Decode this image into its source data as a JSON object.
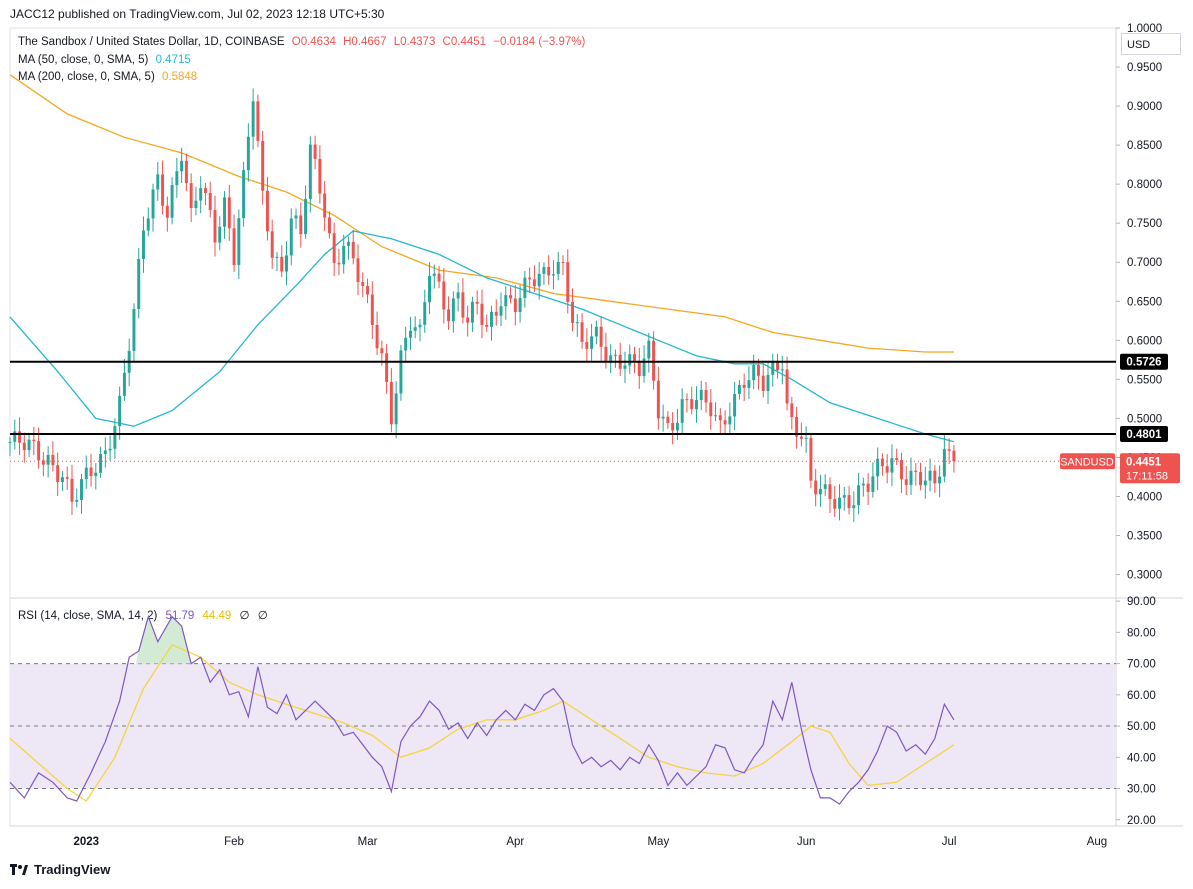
{
  "publisher_line": "JACC12 published on TradingView.com, Jul 02, 2023 12:18 UTC+5:30",
  "legend": {
    "symbol": "The Sandbox / United States Dollar, 1D, COINBASE",
    "open": "O0.4634",
    "high": "H0.4667",
    "low": "L0.4373",
    "close": "C0.4451",
    "change": "−0.0184 (−3.97%)",
    "ma50_label": "MA (50, close, 0, SMA, 5)",
    "ma50_value": "0.4715",
    "ma200_label": "MA (200, close, 0, SMA, 5)",
    "ma200_value": "0.5848"
  },
  "rsi_legend": {
    "label": "RSI (14, close, SMA, 14, 2)",
    "rsi_value": "51.79",
    "sma_value": "44.49",
    "extra1": "∅",
    "extra2": "∅"
  },
  "currency": "USD",
  "brand": "TradingView",
  "price_tag": {
    "symbol": "SANDUSD",
    "price": "0.4451",
    "countdown": "17:11:58"
  },
  "level_tags": [
    "0.5726",
    "0.4801"
  ],
  "colors": {
    "up": "#26a69a",
    "down": "#ef5350",
    "ma50": "#22b8cf",
    "ma200": "#f5a623",
    "rsi": "#7e57c2",
    "rsi_sma": "#f5d442",
    "level": "#000000",
    "rsi_band": "#ede7f6"
  },
  "chart_data": [
    {
      "type": "candlestick",
      "title": "The Sandbox / United States Dollar, 1D, COINBASE",
      "y_axis_ticks": [
        "1.0000",
        "0.9500",
        "0.9000",
        "0.8500",
        "0.8000",
        "0.7500",
        "0.7000",
        "0.6500",
        "0.6000",
        "0.5500",
        "0.5000",
        "0.4500",
        "0.4000",
        "0.3500",
        "0.3000"
      ],
      "y_range": [
        0.27,
        1.0
      ],
      "x_axis_ticks": [
        "2023",
        "Feb",
        "Mar",
        "Apr",
        "May",
        "Jun",
        "Jul",
        "Aug"
      ],
      "x_tick_days": [
        16,
        47,
        75,
        106,
        136,
        167,
        197,
        228
      ],
      "x_range_days": [
        0,
        232
      ],
      "last_day": 198,
      "horizontal_levels": [
        0.5726,
        0.4801
      ],
      "last_price": 0.4451,
      "anchors": [
        [
          0,
          0.47
        ],
        [
          4,
          0.46
        ],
        [
          8,
          0.45
        ],
        [
          11,
          0.43
        ],
        [
          13,
          0.39
        ],
        [
          16,
          0.42
        ],
        [
          20,
          0.46
        ],
        [
          23,
          0.52
        ],
        [
          26,
          0.63
        ],
        [
          28,
          0.74
        ],
        [
          31,
          0.81
        ],
        [
          33,
          0.77
        ],
        [
          36,
          0.84
        ],
        [
          38,
          0.75
        ],
        [
          40,
          0.8
        ],
        [
          43,
          0.74
        ],
        [
          45,
          0.78
        ],
        [
          47,
          0.71
        ],
        [
          49,
          0.8
        ],
        [
          51,
          0.91
        ],
        [
          53,
          0.78
        ],
        [
          55,
          0.72
        ],
        [
          57,
          0.69
        ],
        [
          59,
          0.76
        ],
        [
          61,
          0.73
        ],
        [
          63,
          0.84
        ],
        [
          66,
          0.77
        ],
        [
          68,
          0.7
        ],
        [
          70,
          0.73
        ],
        [
          72,
          0.7
        ],
        [
          74,
          0.66
        ],
        [
          76,
          0.62
        ],
        [
          78,
          0.58
        ],
        [
          80,
          0.51
        ],
        [
          82,
          0.58
        ],
        [
          84,
          0.62
        ],
        [
          86,
          0.6
        ],
        [
          88,
          0.69
        ],
        [
          90,
          0.67
        ],
        [
          92,
          0.64
        ],
        [
          94,
          0.66
        ],
        [
          96,
          0.62
        ],
        [
          98,
          0.64
        ],
        [
          100,
          0.61
        ],
        [
          103,
          0.66
        ],
        [
          106,
          0.65
        ],
        [
          109,
          0.67
        ],
        [
          112,
          0.68
        ],
        [
          114,
          0.7
        ],
        [
          116,
          0.7
        ],
        [
          118,
          0.63
        ],
        [
          120,
          0.59
        ],
        [
          123,
          0.6
        ],
        [
          126,
          0.58
        ],
        [
          129,
          0.58
        ],
        [
          132,
          0.56
        ],
        [
          134,
          0.58
        ],
        [
          136,
          0.51
        ],
        [
          138,
          0.49
        ],
        [
          141,
          0.52
        ],
        [
          144,
          0.52
        ],
        [
          147,
          0.51
        ],
        [
          149,
          0.49
        ],
        [
          151,
          0.52
        ],
        [
          154,
          0.55
        ],
        [
          156,
          0.55
        ],
        [
          158,
          0.54
        ],
        [
          160,
          0.56
        ],
        [
          162,
          0.58
        ],
        [
          163,
          0.52
        ],
        [
          164,
          0.5
        ],
        [
          166,
          0.48
        ],
        [
          167,
          0.46
        ],
        [
          168,
          0.41
        ],
        [
          171,
          0.4
        ],
        [
          174,
          0.4
        ],
        [
          177,
          0.4
        ],
        [
          180,
          0.41
        ],
        [
          182,
          0.43
        ],
        [
          185,
          0.45
        ],
        [
          188,
          0.43
        ],
        [
          191,
          0.42
        ],
        [
          194,
          0.41
        ],
        [
          196,
          0.46
        ],
        [
          198,
          0.445
        ]
      ],
      "ma50": [
        [
          0,
          0.63
        ],
        [
          10,
          0.56
        ],
        [
          18,
          0.5
        ],
        [
          26,
          0.49
        ],
        [
          34,
          0.51
        ],
        [
          44,
          0.56
        ],
        [
          52,
          0.62
        ],
        [
          60,
          0.67
        ],
        [
          66,
          0.71
        ],
        [
          72,
          0.74
        ],
        [
          80,
          0.73
        ],
        [
          90,
          0.71
        ],
        [
          100,
          0.68
        ],
        [
          110,
          0.66
        ],
        [
          120,
          0.64
        ],
        [
          128,
          0.62
        ],
        [
          136,
          0.6
        ],
        [
          144,
          0.58
        ],
        [
          152,
          0.57
        ],
        [
          158,
          0.57
        ],
        [
          164,
          0.55
        ],
        [
          172,
          0.52
        ],
        [
          182,
          0.5
        ],
        [
          192,
          0.48
        ],
        [
          198,
          0.47
        ]
      ],
      "ma200": [
        [
          0,
          0.94
        ],
        [
          12,
          0.89
        ],
        [
          24,
          0.86
        ],
        [
          36,
          0.84
        ],
        [
          48,
          0.81
        ],
        [
          58,
          0.79
        ],
        [
          68,
          0.76
        ],
        [
          78,
          0.72
        ],
        [
          90,
          0.69
        ],
        [
          102,
          0.68
        ],
        [
          114,
          0.66
        ],
        [
          126,
          0.65
        ],
        [
          138,
          0.64
        ],
        [
          150,
          0.63
        ],
        [
          160,
          0.61
        ],
        [
          170,
          0.6
        ],
        [
          180,
          0.59
        ],
        [
          192,
          0.585
        ],
        [
          198,
          0.585
        ]
      ]
    },
    {
      "type": "line",
      "title": "RSI (14, close, SMA, 14, 2)",
      "y_axis_ticks": [
        "90.00",
        "80.00",
        "70.00",
        "60.00",
        "50.00",
        "40.00",
        "30.00",
        "20.00"
      ],
      "y_range": [
        18,
        91
      ],
      "bands": {
        "upper": 70,
        "middle": 50,
        "lower": 30
      },
      "rsi": [
        [
          0,
          32
        ],
        [
          3,
          27
        ],
        [
          6,
          35
        ],
        [
          9,
          32
        ],
        [
          12,
          27
        ],
        [
          14,
          26
        ],
        [
          17,
          35
        ],
        [
          20,
          45
        ],
        [
          23,
          58
        ],
        [
          25,
          72
        ],
        [
          27,
          74
        ],
        [
          29,
          85
        ],
        [
          31,
          77
        ],
        [
          34,
          85
        ],
        [
          36,
          82
        ],
        [
          38,
          70
        ],
        [
          40,
          72
        ],
        [
          42,
          64
        ],
        [
          44,
          68
        ],
        [
          46,
          60
        ],
        [
          48,
          61
        ],
        [
          50,
          53
        ],
        [
          52,
          69
        ],
        [
          54,
          56
        ],
        [
          56,
          54
        ],
        [
          58,
          60
        ],
        [
          60,
          52
        ],
        [
          62,
          55
        ],
        [
          64,
          58
        ],
        [
          66,
          55
        ],
        [
          68,
          52
        ],
        [
          70,
          47
        ],
        [
          72,
          48
        ],
        [
          74,
          44
        ],
        [
          76,
          40
        ],
        [
          78,
          37
        ],
        [
          80,
          29
        ],
        [
          82,
          45
        ],
        [
          84,
          50
        ],
        [
          86,
          53
        ],
        [
          88,
          58
        ],
        [
          90,
          55
        ],
        [
          92,
          49
        ],
        [
          94,
          51
        ],
        [
          96,
          46
        ],
        [
          98,
          51
        ],
        [
          100,
          47
        ],
        [
          102,
          52
        ],
        [
          104,
          55
        ],
        [
          106,
          52
        ],
        [
          108,
          57
        ],
        [
          110,
          55
        ],
        [
          112,
          60
        ],
        [
          114,
          62
        ],
        [
          116,
          58
        ],
        [
          118,
          44
        ],
        [
          120,
          38
        ],
        [
          122,
          40
        ],
        [
          124,
          37
        ],
        [
          126,
          39
        ],
        [
          128,
          36
        ],
        [
          130,
          40
        ],
        [
          132,
          38
        ],
        [
          134,
          44
        ],
        [
          136,
          39
        ],
        [
          138,
          31
        ],
        [
          140,
          35
        ],
        [
          142,
          31
        ],
        [
          144,
          34
        ],
        [
          146,
          37
        ],
        [
          148,
          44
        ],
        [
          150,
          43
        ],
        [
          152,
          36
        ],
        [
          154,
          35
        ],
        [
          156,
          40
        ],
        [
          158,
          44
        ],
        [
          160,
          58
        ],
        [
          162,
          52
        ],
        [
          164,
          64
        ],
        [
          166,
          49
        ],
        [
          168,
          36
        ],
        [
          170,
          27
        ],
        [
          172,
          27
        ],
        [
          174,
          25
        ],
        [
          176,
          29
        ],
        [
          178,
          32
        ],
        [
          180,
          36
        ],
        [
          182,
          42
        ],
        [
          184,
          50
        ],
        [
          186,
          48
        ],
        [
          188,
          42
        ],
        [
          190,
          44
        ],
        [
          192,
          41
        ],
        [
          194,
          46
        ],
        [
          196,
          57
        ],
        [
          198,
          52
        ]
      ],
      "rsi_sma": [
        [
          0,
          46
        ],
        [
          6,
          38
        ],
        [
          12,
          30
        ],
        [
          16,
          26
        ],
        [
          22,
          40
        ],
        [
          28,
          62
        ],
        [
          34,
          76
        ],
        [
          40,
          72
        ],
        [
          46,
          64
        ],
        [
          52,
          60
        ],
        [
          58,
          57
        ],
        [
          64,
          54
        ],
        [
          70,
          51
        ],
        [
          76,
          47
        ],
        [
          82,
          40
        ],
        [
          88,
          43
        ],
        [
          94,
          49
        ],
        [
          100,
          52
        ],
        [
          106,
          52
        ],
        [
          112,
          55
        ],
        [
          116,
          58
        ],
        [
          122,
          52
        ],
        [
          128,
          46
        ],
        [
          134,
          40
        ],
        [
          140,
          37
        ],
        [
          146,
          35
        ],
        [
          152,
          34
        ],
        [
          158,
          38
        ],
        [
          164,
          45
        ],
        [
          168,
          50
        ],
        [
          172,
          48
        ],
        [
          176,
          38
        ],
        [
          180,
          31
        ],
        [
          186,
          32
        ],
        [
          192,
          38
        ],
        [
          198,
          44
        ]
      ]
    }
  ]
}
